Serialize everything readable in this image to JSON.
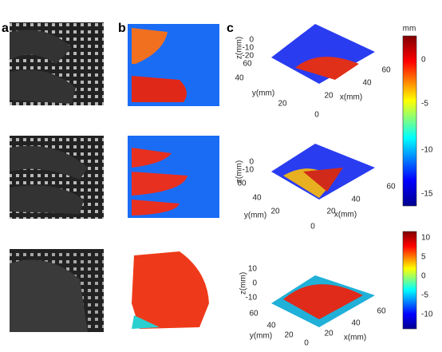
{
  "panels": {
    "a": "a",
    "b": "b",
    "c": "c"
  },
  "plots": [
    {
      "z_label": "z(mm)",
      "y_label": "y(mm)",
      "x_label": "x(mm)",
      "z_ticks": [
        0,
        -10,
        -20
      ],
      "y_ticks": [
        60,
        40,
        20
      ],
      "origin": 0,
      "x_ticks": [
        20,
        40,
        60
      ]
    },
    {
      "z_label": "z(mm)",
      "y_label": "y(mm)",
      "x_label": "x(mm)",
      "z_ticks": [
        0,
        -10
      ],
      "y_ticks": [
        60,
        40,
        20
      ],
      "origin": 0,
      "x_ticks": [
        20,
        40,
        60
      ]
    },
    {
      "z_label": "z(mm)",
      "y_label": "y(mm)",
      "x_label": "x(mm)",
      "z_ticks": [
        10,
        0,
        -10
      ],
      "y_ticks": [
        60,
        40,
        20
      ],
      "origin": 0,
      "x_ticks": [
        20,
        40,
        60
      ]
    }
  ],
  "colorbars": [
    {
      "unit": "mm",
      "ticks": [
        0,
        -5,
        -10,
        -15
      ]
    },
    {
      "ticks": [
        10,
        5,
        0,
        -5,
        -10
      ]
    }
  ]
}
